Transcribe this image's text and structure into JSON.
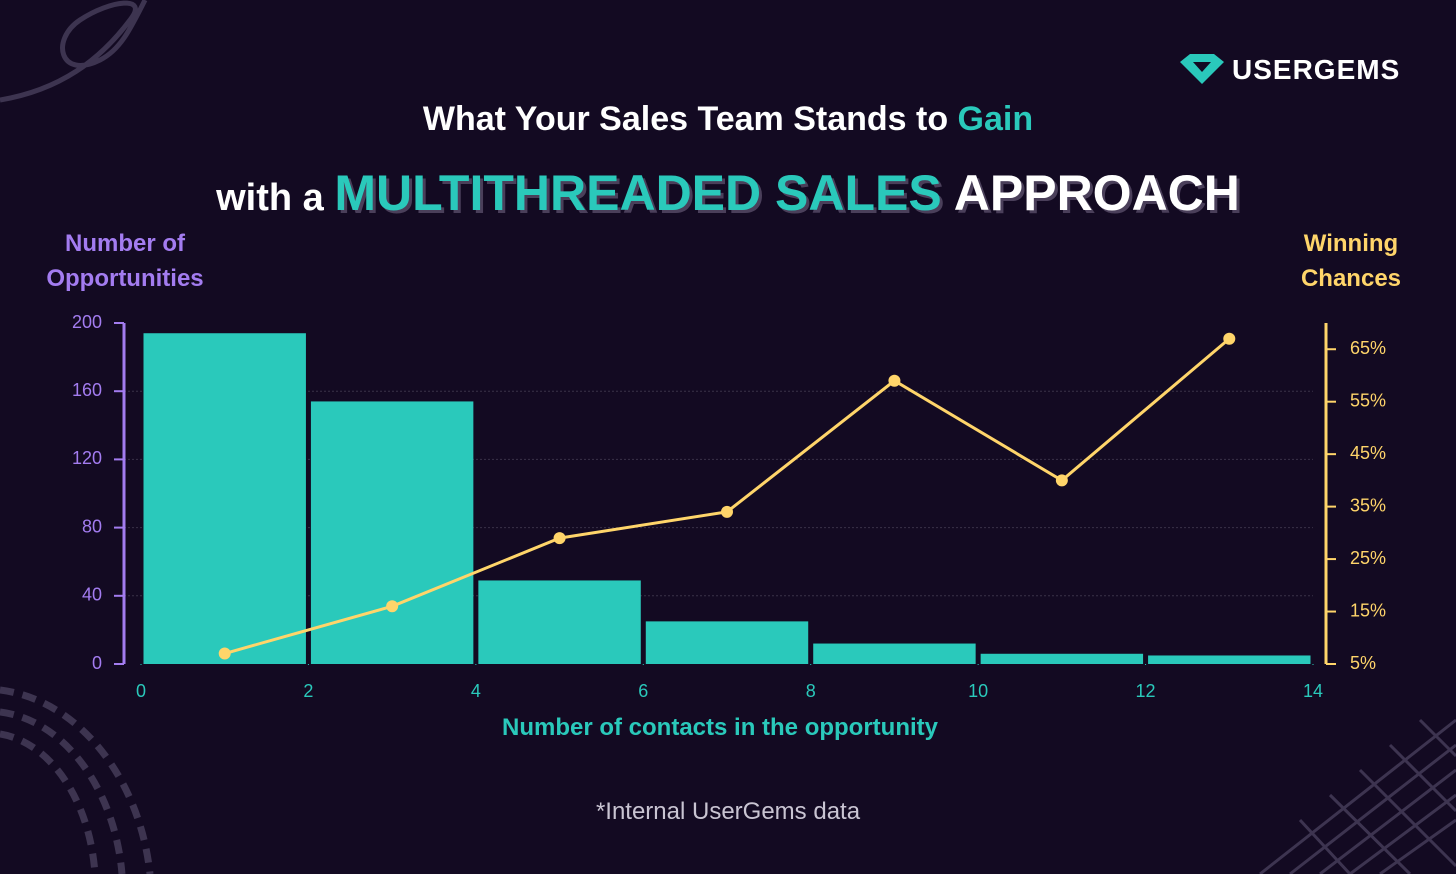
{
  "brand": "USERGEMS",
  "footnote": "*Internal UserGems data",
  "chart_data": {
    "type": "histogram",
    "title": {
      "line1": [
        "What Your Sales Team Stands to ",
        "Gain"
      ],
      "line2": [
        "with a ",
        "MULTITHREADED SALES",
        " APPROACH"
      ]
    },
    "ylabel": "Number of Opportunities",
    "y2label": "Winning Chances",
    "xlabel": "Number of contacts in the opportunity",
    "bins": [
      0,
      2,
      4,
      6,
      8,
      10,
      12,
      14
    ],
    "values": [
      194,
      154,
      49,
      25,
      12,
      6,
      5
    ],
    "color": "#2ac9bb",
    "line": {
      "x": [
        1,
        3,
        5,
        7,
        9,
        11,
        13
      ],
      "values": [
        7,
        16,
        29,
        34,
        59,
        40,
        67
      ],
      "color": "#ffd56a",
      "axis": "y2"
    },
    "xlim": [
      0,
      14
    ],
    "xticks": [
      0,
      2,
      4,
      6,
      8,
      10,
      12,
      14
    ],
    "ylim": [
      0,
      200
    ],
    "yticks": [
      0,
      40,
      80,
      120,
      160,
      200
    ],
    "y2lim": [
      5,
      70
    ],
    "y2ticks": [
      {
        "value": 5,
        "label": "5%"
      },
      {
        "value": 15,
        "label": "15%"
      },
      {
        "value": 25,
        "label": "25%"
      },
      {
        "value": 35,
        "label": "35%"
      },
      {
        "value": 45,
        "label": "45%"
      },
      {
        "value": 55,
        "label": "55%"
      },
      {
        "value": 65,
        "label": "65%"
      }
    ],
    "grid": true
  }
}
